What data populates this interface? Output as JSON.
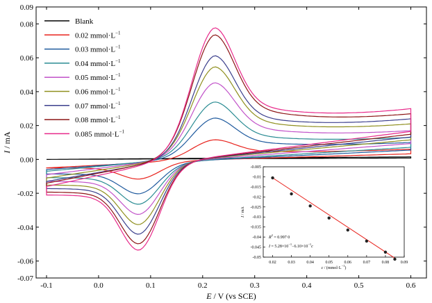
{
  "chart_data": {
    "type": "line",
    "xlabel_var": "E",
    "xlabel_rest": " / V (vs SCE)",
    "ylabel_var": "I",
    "ylabel_rest": " / mA",
    "xlim": [
      -0.12,
      0.63
    ],
    "ylim": [
      -0.07,
      0.09
    ],
    "xticks": [
      -0.1,
      0.0,
      0.1,
      0.2,
      0.3,
      0.4,
      0.5,
      0.6
    ],
    "xtick_labels": [
      "-0.1",
      "0.0",
      "0.1",
      "0.2",
      "0.3",
      "0.4",
      "0.5",
      "0.6"
    ],
    "yticks": [
      -0.07,
      -0.06,
      -0.04,
      -0.02,
      0.0,
      0.02,
      0.04,
      0.06,
      0.08,
      0.09
    ],
    "ytick_labels": [
      "-0.07",
      "-0.06",
      "-0.04",
      "-0.02",
      "0.00",
      "0.02",
      "0.04",
      "0.06",
      "0.08",
      "0.09"
    ],
    "legend_position": "top-left",
    "series": [
      {
        "name": "Blank",
        "unit": "",
        "color": "#000000",
        "ip": 0.0,
        "iv": 0.0,
        "iend": 0.0015,
        "pa": 0.0,
        "pc": 0.0
      },
      {
        "name": "0.02",
        "unit": "mmol·L",
        "color": "#e8231d",
        "ip": -0.005,
        "iv": -0.003,
        "iend": 0.006,
        "pa": 0.012,
        "pc": -0.0105
      },
      {
        "name": "0.03",
        "unit": "mmol·L",
        "color": "#1f5a9e",
        "ip": -0.006,
        "iv": -0.005,
        "iend": 0.01,
        "pa": 0.024,
        "pc": -0.0185
      },
      {
        "name": "0.04",
        "unit": "mmol·L",
        "color": "#2a8c93",
        "ip": -0.007,
        "iv": -0.006,
        "iend": 0.013,
        "pa": 0.033,
        "pc": -0.0245
      },
      {
        "name": "0.05",
        "unit": "mmol·L",
        "color": "#c152c9",
        "ip": -0.009,
        "iv": -0.007,
        "iend": 0.017,
        "pa": 0.044,
        "pc": -0.0305
      },
      {
        "name": "0.06",
        "unit": "mmol·L",
        "color": "#8f8f1e",
        "ip": -0.011,
        "iv": -0.008,
        "iend": 0.021,
        "pa": 0.053,
        "pc": -0.0365
      },
      {
        "name": "0.07",
        "unit": "mmol·L",
        "color": "#3b3f8c",
        "ip": -0.013,
        "iv": -0.009,
        "iend": 0.024,
        "pa": 0.0595,
        "pc": -0.042
      },
      {
        "name": "0.08",
        "unit": "mmol·L",
        "color": "#8c1414",
        "ip": -0.014,
        "iv": -0.01,
        "iend": 0.027,
        "pa": 0.0715,
        "pc": -0.0475
      },
      {
        "name": "0.085",
        "unit": "mmol·L",
        "color": "#e8298a",
        "ip": -0.016,
        "iv": -0.011,
        "iend": 0.03,
        "pa": 0.0755,
        "pc": -0.051
      }
    ],
    "inset": {
      "type": "scatter",
      "xlabel_var": "c",
      "xlabel_rest": " / (mmol·L",
      "ylabel_var": "I",
      "ylabel_rest": " / mA",
      "xlim": [
        0.015,
        0.09
      ],
      "ylim": [
        -0.05,
        -0.005
      ],
      "xticks": [
        0.02,
        0.03,
        0.04,
        0.05,
        0.06,
        0.07,
        0.08,
        0.09
      ],
      "xtick_labels": [
        "0.02",
        "0.03",
        "0.04",
        "0.05",
        "0.06",
        "0.07",
        "0.08",
        "0.09"
      ],
      "yticks": [
        -0.005,
        -0.01,
        -0.015,
        -0.02,
        -0.025,
        -0.03,
        -0.035,
        -0.04,
        -0.045,
        -0.05
      ],
      "ytick_labels": [
        "-0.005",
        "-0.01",
        "-0.015",
        "-0.02",
        "-0.025",
        "-0.03",
        "-0.035",
        "-0.04",
        "-0.045",
        "-0.05"
      ],
      "x": [
        0.02,
        0.03,
        0.04,
        0.05,
        0.06,
        0.07,
        0.08,
        0.085
      ],
      "y": [
        -0.0105,
        -0.0185,
        -0.0245,
        -0.0305,
        -0.0365,
        -0.042,
        -0.0475,
        -0.051
      ],
      "fit_line": {
        "x": [
          0.02,
          0.085
        ],
        "y": [
          -0.0105,
          -0.0505
        ]
      },
      "r2_var": "R",
      "r2_text": " = 0.997 0",
      "eq_var": "I",
      "eq_text": " = 5.28×10",
      "eq_text2": "−6.10×10",
      "eq_var2": "c",
      "point_color": "#222222",
      "line_color": "#e8231d"
    }
  }
}
